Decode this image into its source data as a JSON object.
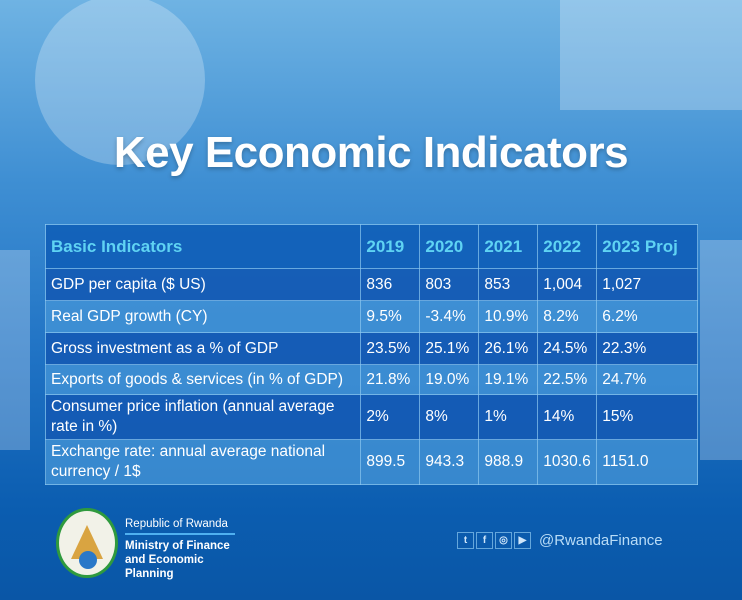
{
  "title": "Key Economic Indicators",
  "table": {
    "headers": [
      "Basic Indicators",
      "2019",
      "2020",
      "2021",
      "2022",
      "2023 Proj"
    ],
    "rows": [
      [
        "GDP per capita ($ US)",
        "836",
        "803",
        "853",
        "1,004",
        "1,027"
      ],
      [
        "Real GDP growth (CY)",
        "9.5%",
        "-3.4%",
        "10.9%",
        "8.2%",
        "6.2%"
      ],
      [
        "Gross investment as a % of GDP",
        "23.5%",
        "25.1%",
        "26.1%",
        "24.5%",
        "22.3%"
      ],
      [
        "Exports of goods & services  (in % of GDP)",
        "21.8%",
        "19.0%",
        "19.1%",
        "22.5%",
        "24.7%"
      ],
      [
        "Consumer price inflation (annual average rate in %)",
        "2%",
        "8%",
        "1%",
        "14%",
        "15%"
      ],
      [
        "Exchange rate: annual average national currency / 1$",
        "899.5",
        "943.3",
        "988.9",
        "1030.6",
        "1151.0"
      ]
    ]
  },
  "footer": {
    "republic": "Republic of Rwanda",
    "ministry": "Ministry of Finance and Economic Planning",
    "social_icons": [
      "twitter-icon",
      "facebook-icon",
      "instagram-icon",
      "youtube-icon"
    ],
    "handle": "@RwandaFinance"
  }
}
